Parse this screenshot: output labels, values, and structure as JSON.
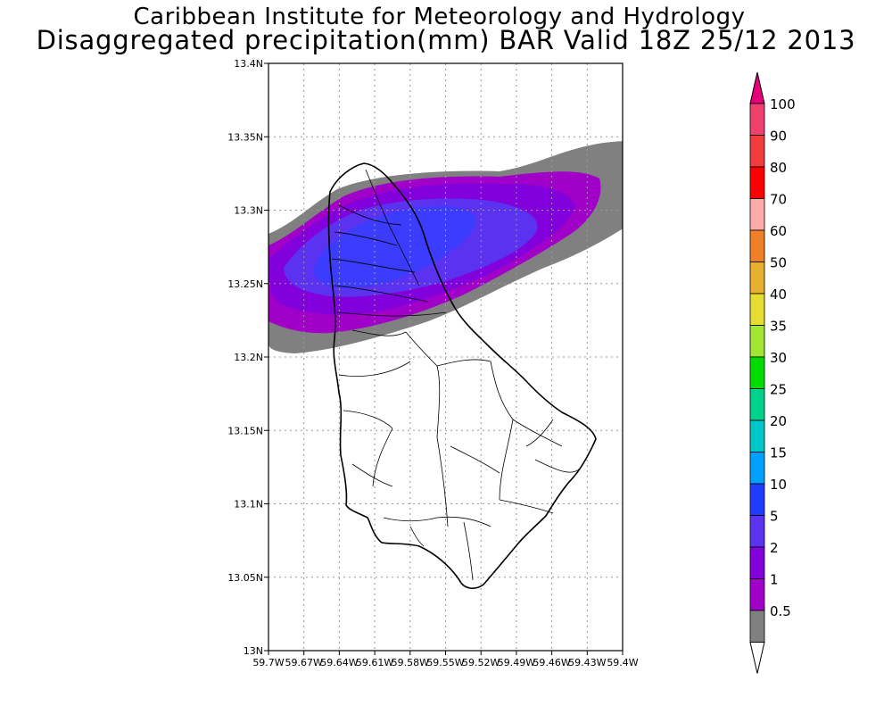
{
  "header": {
    "title_line1": "Caribbean Institute for Meteorology and Hydrology",
    "title_line2": "Disaggregated precipitation(mm) BAR Valid 18Z 25/12 2013"
  },
  "map": {
    "lat_ticks": [
      "13.4N",
      "13.35N",
      "13.3N",
      "13.25N",
      "13.2N",
      "13.15N",
      "13.1N",
      "13.05N",
      "13N"
    ],
    "lon_ticks": [
      "59.7W",
      "59.67W",
      "59.64W",
      "59.61W",
      "59.58W",
      "59.55W",
      "59.52W",
      "59.49W",
      "59.46W",
      "59.43W",
      "59.4W"
    ],
    "lat_range": [
      13.0,
      13.4
    ],
    "lon_range": [
      -59.7,
      -59.4
    ],
    "grid": "dotted"
  },
  "legend": {
    "levels": [
      {
        "label": "100",
        "color": "#f0406e"
      },
      {
        "label": "90",
        "color": "#f03c3c"
      },
      {
        "label": "80",
        "color": "#ff0000"
      },
      {
        "label": "70",
        "color": "#fcaaaa"
      },
      {
        "label": "60",
        "color": "#f08028"
      },
      {
        "label": "50",
        "color": "#e6af2d"
      },
      {
        "label": "40",
        "color": "#e6dc32"
      },
      {
        "label": "35",
        "color": "#a0e632"
      },
      {
        "label": "30",
        "color": "#00dc00"
      },
      {
        "label": "25",
        "color": "#00d28c"
      },
      {
        "label": "20",
        "color": "#00c8c8"
      },
      {
        "label": "15",
        "color": "#00a0ff"
      },
      {
        "label": "10",
        "color": "#1e3cff"
      },
      {
        "label": "5",
        "color": "#5a32f0"
      },
      {
        "label": "2",
        "color": "#8200dc"
      },
      {
        "label": "1",
        "color": "#a000c8"
      },
      {
        "label": "0.5",
        "color": "#808080"
      }
    ],
    "top_arrow_color": "#e6007a",
    "bottom_arrow_color": "#ffffff"
  },
  "precip_colors": {
    "gray": "#808080",
    "purple_light": "#a000c8",
    "purple": "#8200dc",
    "violet": "#5a32f0",
    "blue": "#3c3cff"
  }
}
